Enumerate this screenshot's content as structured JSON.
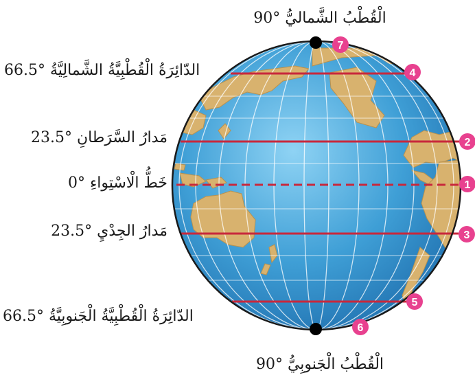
{
  "labels": {
    "north_pole": "الْقُطْبُ الشَّماليُّ °90",
    "arctic_circle": "الدّائِرَةُ الْقُطْبِيَّةُ الشَّمالِيَّةُ °66.5",
    "tropic_cancer": "مَدارُ السَّرَطانِ °23.5",
    "equator": "خَطُّ الْاسْتِواءِ °0",
    "tropic_capricorn": "مَدارُ الجِدْيِ °23.5",
    "antarctic_circle": "الدّائِرَةُ الْقُطْبِيَّةُ الْجَنوبِيَّةُ °66.5",
    "south_pole": "الْقُطْبُ الْجَنوبِيُّ °90"
  },
  "markers": {
    "equator": "1",
    "tropic_cancer": "2",
    "tropic_capricorn": "3",
    "arctic_circle": "4",
    "antarctic_circle": "5",
    "south_pole": "6",
    "north_pole": "7"
  },
  "colors": {
    "ocean": "#3f9fd6",
    "land": "#d8b26e",
    "latitude_line": "#c8283c",
    "marker": "#e8418f",
    "pole_dot": "#000000",
    "outline": "#1a1a1a"
  }
}
